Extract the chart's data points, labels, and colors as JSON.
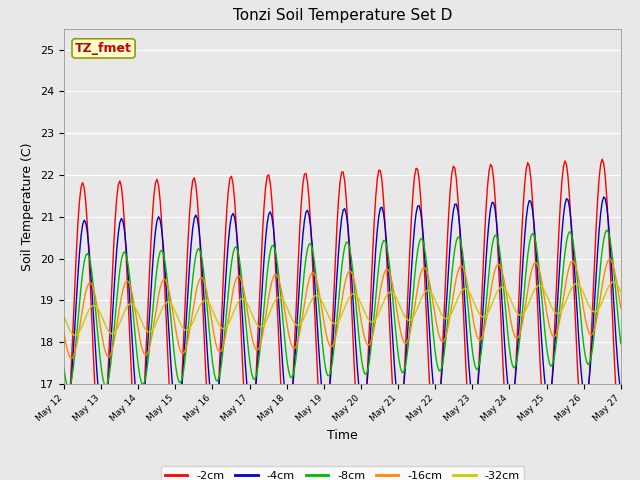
{
  "title": "Tonzi Soil Temperature Set D",
  "xlabel": "Time",
  "ylabel": "Soil Temperature (C)",
  "ylim": [
    17.0,
    25.5
  ],
  "series_colors": {
    "-2cm": "#ff0000",
    "-4cm": "#0000cc",
    "-8cm": "#00bb00",
    "-16cm": "#ff8800",
    "-32cm": "#cccc00"
  },
  "annotation_text": "TZ_fmet",
  "annotation_bg": "#ffffcc",
  "annotation_border": "#999900",
  "annotation_text_color": "#cc0000",
  "fig_bg": "#e8e8e8",
  "ax_bg": "#e8e8e8",
  "grid_color": "#ffffff",
  "n_days": 15,
  "start_day": 12,
  "pts_per_day": 24,
  "base_temp": 18.5,
  "trend": 0.04,
  "series_params": {
    "-2cm": {
      "amp": 3.3,
      "phase": 1.571,
      "noise": 0.0
    },
    "-4cm": {
      "amp": 2.4,
      "phase": 1.884,
      "noise": 0.0
    },
    "-8cm": {
      "amp": 1.6,
      "phase": 2.356,
      "noise": 0.0
    },
    "-16cm": {
      "amp": 0.9,
      "phase": 2.827,
      "noise": 0.0
    },
    "-32cm": {
      "amp": 0.35,
      "phase": 3.456,
      "noise": 0.0
    }
  },
  "yticks": [
    17.0,
    18.0,
    19.0,
    20.0,
    21.0,
    22.0,
    23.0,
    24.0,
    25.0
  ]
}
